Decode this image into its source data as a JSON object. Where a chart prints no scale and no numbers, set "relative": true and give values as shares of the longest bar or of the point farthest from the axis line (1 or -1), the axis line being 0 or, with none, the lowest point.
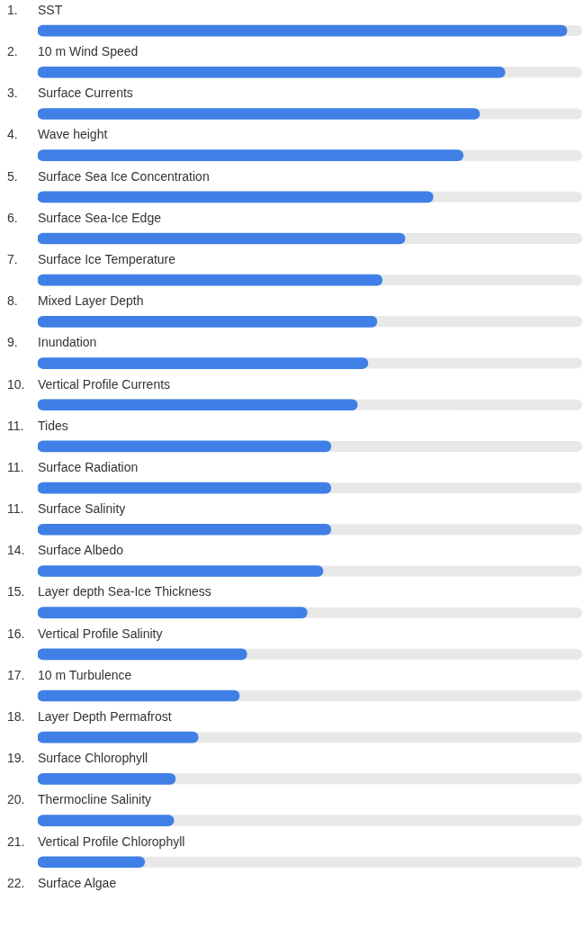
{
  "chart_data": {
    "type": "bar",
    "orientation": "horizontal",
    "relative": true,
    "color": "#3f7fe6",
    "categories": [
      "1. SST",
      "2. 10 m Wind Speed",
      "3. Surface Currents",
      "4. Wave height",
      "5. Surface Sea Ice Concentration",
      "6. Surface Sea-Ice Edge",
      "7. Surface Ice Temperature",
      "8. Mixed Layer Depth",
      "9. Inundation",
      "10. Vertical Profile Currents",
      "11. Tides",
      "11. Surface Radiation",
      "11. Surface Salinity",
      "14. Surface Albedo",
      "15. Layer depth Sea-Ice Thickness",
      "16. Vertical Profile Salinity",
      "17. 10 m Turbulence",
      "18. Layer Depth Permafrost",
      "19. Surface Chlorophyll",
      "20. Thermocline Salinity",
      "21. Vertical Profile Chlorophyll",
      "22. Surface Algae"
    ],
    "values": [
      1,
      0.883,
      0.835,
      0.804,
      0.747,
      0.694,
      0.651,
      0.641,
      0.624,
      0.604,
      0.554,
      0.554,
      0.554,
      0.539,
      0.509,
      0.395,
      0.381,
      0.303,
      0.26,
      0.257,
      0.202,
      null
    ]
  }
}
